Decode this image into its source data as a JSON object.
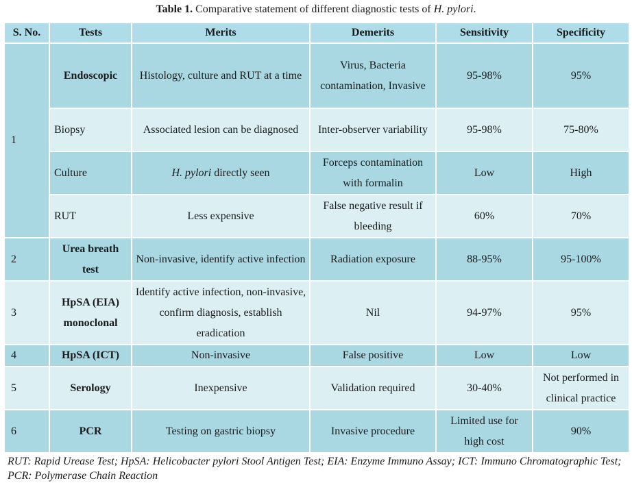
{
  "caption": {
    "label": "Table 1.",
    "text": "Comparative statement of different diagnostic tests of",
    "organism": "H. pylori",
    "end": "."
  },
  "headers": [
    "S. No.",
    "Tests",
    "Merits",
    "Demerits",
    "Sensitivity",
    "Specificity"
  ],
  "rows": [
    {
      "sno": "1",
      "test": "Endoscopic",
      "merits": "Histology, culture and RUT at a time",
      "demerits": "Virus, Bacteria contamination, Invasive",
      "sensitivity": "95-98%",
      "specificity": "95%"
    },
    {
      "test": "Biopsy",
      "merits": "Associated lesion can be diagnosed",
      "demerits": "Inter-observer variability",
      "sensitivity": "95-98%",
      "specificity": "75-80%"
    },
    {
      "test": "Culture",
      "merits_italic": "H. pylori",
      "merits": " directly seen",
      "demerits": "Forceps contamination with formalin",
      "sensitivity": "Low",
      "specificity": "High"
    },
    {
      "test": "RUT",
      "merits": "Less expensive",
      "demerits": "False negative result if bleeding",
      "sensitivity": "60%",
      "specificity": "70%"
    },
    {
      "sno": "2",
      "test": "Urea breath test",
      "merits": "Non-invasive, identify active infection",
      "demerits": "Radiation exposure",
      "sensitivity": "88-95%",
      "specificity": "95-100%"
    },
    {
      "sno": "3",
      "test": "HpSA (EIA) monoclonal",
      "merits": "Identify active infection, non-invasive, confirm diagnosis, establish eradication",
      "demerits": "Nil",
      "sensitivity": "94-97%",
      "specificity": "95%"
    },
    {
      "sno": "4",
      "test": "HpSA (ICT)",
      "merits": "Non-invasive",
      "demerits": "False positive",
      "sensitivity": "Low",
      "specificity": "Low"
    },
    {
      "sno": "5",
      "test": "Serology",
      "merits": "Inexpensive",
      "demerits": "Validation required",
      "sensitivity": "30-40%",
      "specificity": "Not performed in clinical practice"
    },
    {
      "sno": "6",
      "test": "PCR",
      "merits": "Testing on gastric biopsy",
      "demerits": "Invasive procedure",
      "sensitivity": "Limited use for high cost",
      "specificity": "90%"
    }
  ],
  "footnote": "RUT: Rapid Urease Test; HpSA: Helicobacter pylori Stool Antigen Test; EIA: Enzyme Immuno Assay; ICT: Immuno Chromatographic Test; PCR: Polymerase Chain Reaction",
  "colors": {
    "header_bg": "#aedce8",
    "dark_row_bg": "#a9d8e3",
    "light_row_bg": "#dcf0f4",
    "border": "#ffffff"
  }
}
